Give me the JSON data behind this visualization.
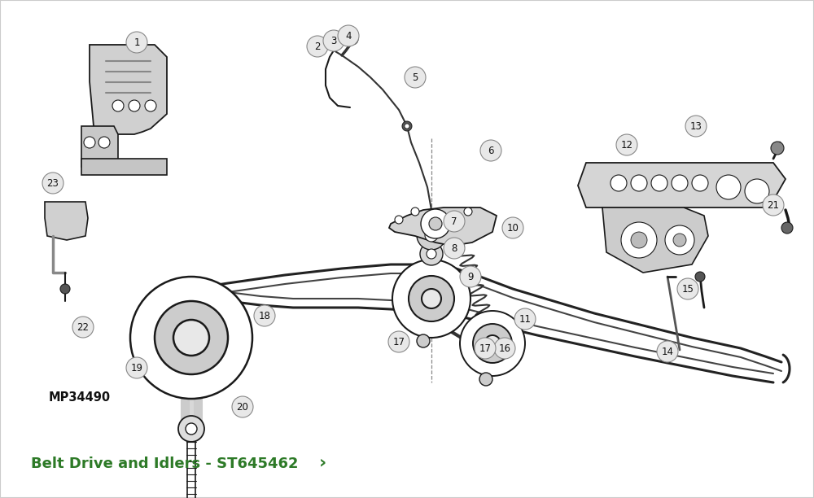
{
  "title": "Belt Drive and Idlers - ST645462",
  "title_color": "#2d7a27",
  "title_fontsize": 13,
  "mp_label": "MP34490",
  "bg_color": "#f0f0f0",
  "diagram_bg": "#ffffff",
  "line_color": "#1a1a1a",
  "belt_color": "#1a1a1a",
  "label_bg": "#e8e8e8",
  "label_border": "#999999",
  "label_fontsize": 9,
  "figwidth": 10.0,
  "figheight": 6.12,
  "dpi": 100
}
